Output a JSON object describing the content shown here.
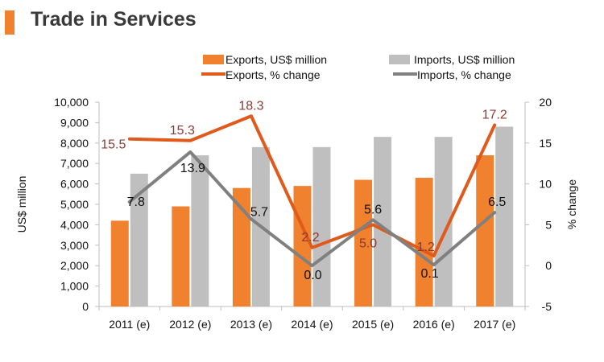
{
  "header": {
    "title": "Trade in Services",
    "accent_color": "#f0812f"
  },
  "chart_data": {
    "type": "bar",
    "categories": [
      "2011 (e)",
      "2012 (e)",
      "2013 (e)",
      "2014 (e)",
      "2015 (e)",
      "2016 (e)",
      "2017 (e)"
    ],
    "bar_series": [
      {
        "name": "Exports, US$ million",
        "color": "#f0812f",
        "values": [
          4200,
          4900,
          5800,
          5900,
          6200,
          6300,
          7400
        ]
      },
      {
        "name": "Imports, US$ million",
        "color": "#bfbfbf",
        "values": [
          6500,
          7400,
          7800,
          7800,
          8300,
          8300,
          8800
        ]
      }
    ],
    "line_series": [
      {
        "name": "Exports, % change",
        "color": "#e05a1c",
        "label_color": "#8a3a32",
        "values": [
          15.5,
          15.3,
          18.3,
          2.2,
          5.0,
          1.2,
          17.2
        ],
        "labels": [
          "15.5",
          "15.3",
          "18.3",
          "2.2",
          "5.0",
          "1.2",
          "17.2"
        ]
      },
      {
        "name": "Imports, % change",
        "color": "#808080",
        "label_color": "#111111",
        "values": [
          7.8,
          13.9,
          5.7,
          0.0,
          5.6,
          0.1,
          6.5
        ],
        "labels": [
          "7.8",
          "13.9",
          "5.7",
          "0.0",
          "5.6",
          "0.1",
          "6.5"
        ]
      }
    ],
    "y_left": {
      "label": "US$ million",
      "range": [
        0,
        10000
      ],
      "ticks": [
        "0",
        "1,000",
        "2,000",
        "3,000",
        "4,000",
        "5,000",
        "6,000",
        "7,000",
        "8,000",
        "9,000",
        "10,000"
      ]
    },
    "y_right": {
      "label": "% change",
      "range": [
        -5,
        20
      ],
      "ticks": [
        "-5",
        "0",
        "5",
        "10",
        "15",
        "20"
      ]
    },
    "grid": false,
    "legend_position": "top"
  }
}
